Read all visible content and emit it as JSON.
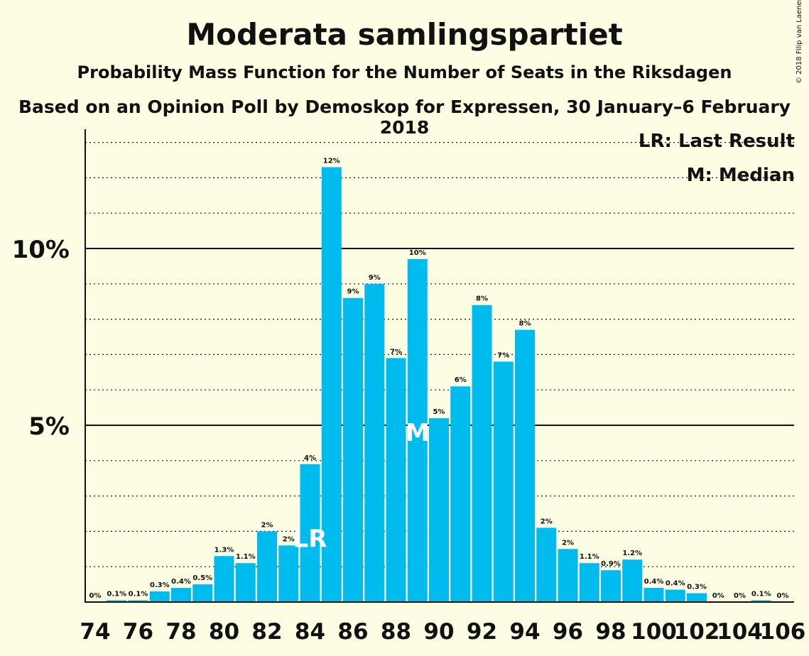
{
  "chart_data": {
    "type": "bar",
    "title": "Moderata samlingspartiet",
    "subtitle": "Probability Mass Function for the Number of Seats in the Riksdagen",
    "subtitle2": "Based on an Opinion Poll by Demoskop for Expressen, 30 January–6 February 2018",
    "copyright": "© 2018 Filip van Laenen",
    "x": [
      74,
      75,
      76,
      77,
      78,
      79,
      80,
      81,
      82,
      83,
      84,
      85,
      86,
      87,
      88,
      89,
      90,
      91,
      92,
      93,
      94,
      95,
      96,
      97,
      98,
      99,
      100,
      101,
      102,
      103,
      104,
      105,
      106
    ],
    "values": [
      0,
      0.05,
      0.05,
      0.3,
      0.4,
      0.5,
      1.3,
      1.1,
      2.0,
      1.6,
      3.9,
      12.3,
      8.6,
      9.0,
      6.9,
      9.7,
      5.2,
      6.1,
      8.4,
      6.8,
      7.7,
      2.1,
      1.5,
      1.1,
      0.9,
      1.2,
      0.4,
      0.35,
      0.25,
      0,
      0,
      0.05,
      0
    ],
    "data_labels": [
      "0%",
      "0.1%",
      "0.1%",
      "0.3%",
      "0.4%",
      "0.5%",
      "1.3%",
      "1.1%",
      "2%",
      "2%",
      "4%",
      "12%",
      "9%",
      "9%",
      "7%",
      "10%",
      "5%",
      "6%",
      "8%",
      "7%",
      "8%",
      "2%",
      "2%",
      "1.1%",
      "0.9%",
      "1.2%",
      "0.4%",
      "0.4%",
      "0.3%",
      "0%",
      "0%",
      "0.1%",
      "0%"
    ],
    "x_tick_labels": [
      "74",
      "76",
      "78",
      "80",
      "82",
      "84",
      "86",
      "88",
      "90",
      "92",
      "94",
      "96",
      "98",
      "100",
      "102",
      "104",
      "106"
    ],
    "y_tick_labels": [
      {
        "value": 5,
        "label": "5%"
      },
      {
        "value": 10,
        "label": "10%"
      }
    ],
    "ylim": [
      0,
      13.4
    ],
    "last_result_seat": 84,
    "median_seat": 89,
    "lr_mark": "LR",
    "median_mark": "M",
    "legend": {
      "lr": "LR: Last Result",
      "m": "M: Median"
    },
    "bar_color": "#00bbee",
    "grid": true
  }
}
